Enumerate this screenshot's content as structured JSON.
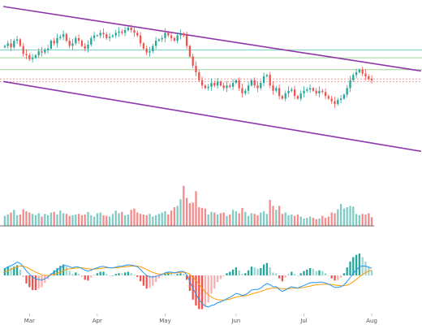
{
  "chart_data": {
    "type": "candlestick",
    "title": "",
    "colors": {
      "up": "#26a69a",
      "down": "#ef5350",
      "volume_up": "#80cbc4",
      "volume_down": "#f28b8b",
      "channel": "#8e35a8",
      "hline_teal": "#7fd1c4",
      "hline_green": "#9fd39a",
      "hline_red": "#ef9a9a",
      "macd_line": "#2196f3",
      "signal_line": "#ff9800",
      "hist_up": "#26a69a",
      "hist_down": "#ef5350"
    },
    "x_tick_labels": [
      "Mar",
      "Apr",
      "May",
      "Jun",
      "Jul",
      "Aug"
    ],
    "x_tick_index": [
      8,
      30,
      52,
      75,
      97,
      119
    ],
    "price_scale": {
      "min": 0,
      "max": 100
    },
    "volume_scale": {
      "min": 0,
      "max": 100
    },
    "macd_scale": {
      "min": -10,
      "max": 10
    },
    "horizontal_lines": [
      {
        "value": 67,
        "color": "hline_teal"
      },
      {
        "value": 61,
        "color": "hline_green"
      },
      {
        "value": 52,
        "color": "hline_green"
      },
      {
        "value": 45,
        "color": "hline_red"
      },
      {
        "value": 43,
        "color": "hline_red"
      }
    ],
    "channel_lines": [
      {
        "start": [
          0,
          100
        ],
        "end": [
          135,
          51
        ]
      },
      {
        "start": [
          0,
          43
        ],
        "end": [
          135,
          -10
        ]
      }
    ],
    "close": [
      70,
      72,
      69,
      74,
      75,
      70,
      64,
      63,
      60,
      61,
      63,
      66,
      65,
      67,
      68,
      74,
      72,
      76,
      77,
      79,
      74,
      70,
      72,
      76,
      74,
      70,
      68,
      71,
      76,
      78,
      78,
      80,
      79,
      76,
      77,
      78,
      80,
      81,
      80,
      82,
      84,
      82,
      80,
      78,
      72,
      68,
      65,
      66,
      70,
      74,
      75,
      76,
      80,
      78,
      76,
      74,
      78,
      79,
      78,
      70,
      62,
      55,
      50,
      44,
      40,
      38,
      39,
      42,
      40,
      43,
      40,
      38,
      40,
      39,
      42,
      44,
      38,
      34,
      36,
      40,
      44,
      40,
      38,
      42,
      47,
      48,
      40,
      36,
      38,
      32,
      30,
      34,
      36,
      37,
      32,
      30,
      34,
      36,
      37,
      38,
      36,
      34,
      36,
      35,
      32,
      30,
      28,
      26,
      29,
      30,
      33,
      38,
      44,
      48,
      50,
      52,
      49,
      47,
      45,
      44
    ],
    "volume": [
      15,
      17,
      20,
      24,
      16,
      17,
      25,
      22,
      20,
      18,
      16,
      19,
      14,
      18,
      16,
      20,
      21,
      17,
      23,
      19,
      18,
      15,
      16,
      17,
      18,
      16,
      17,
      21,
      16,
      14,
      19,
      20,
      16,
      15,
      14,
      18,
      23,
      19,
      21,
      16,
      17,
      24,
      26,
      20,
      18,
      17,
      16,
      18,
      14,
      16,
      18,
      20,
      22,
      17,
      23,
      28,
      30,
      40,
      60,
      42,
      34,
      35,
      52,
      28,
      27,
      26,
      17,
      21,
      20,
      17,
      19,
      20,
      15,
      17,
      24,
      22,
      19,
      27,
      21,
      15,
      19,
      18,
      16,
      20,
      22,
      18,
      39,
      30,
      24,
      30,
      18,
      20,
      16,
      17,
      15,
      17,
      14,
      11,
      12,
      14,
      12,
      10,
      11,
      15,
      12,
      14,
      20,
      19,
      25,
      33,
      26,
      28,
      30,
      29,
      18,
      16,
      18,
      17,
      19,
      13
    ],
    "macd": [
      2.0,
      2.6,
      2.9,
      3.4,
      4.0,
      3.6,
      2.6,
      1.4,
      0.4,
      -0.5,
      -1.0,
      -1.2,
      -1.4,
      -1.0,
      -0.5,
      0.4,
      1.0,
      1.6,
      2.3,
      2.9,
      3.0,
      2.6,
      2.3,
      2.6,
      2.5,
      2.1,
      1.6,
      1.3,
      1.6,
      2.0,
      2.3,
      2.6,
      2.7,
      2.5,
      2.3,
      2.3,
      2.5,
      2.7,
      2.8,
      3.0,
      3.2,
      3.1,
      2.9,
      2.6,
      1.8,
      0.8,
      0.0,
      -0.4,
      -0.5,
      -0.3,
      0.0,
      0.3,
      0.8,
      1.0,
      1.0,
      0.8,
      1.0,
      1.2,
      1.2,
      0.2,
      -1.8,
      -3.8,
      -5.6,
      -7.2,
      -8.4,
      -9.2,
      -9.5,
      -9.0,
      -8.8,
      -8.2,
      -7.9,
      -7.5,
      -7.0,
      -6.6,
      -6.0,
      -5.4,
      -5.6,
      -6.0,
      -5.8,
      -5.2,
      -4.4,
      -4.2,
      -4.2,
      -3.8,
      -3.0,
      -2.4,
      -2.8,
      -3.4,
      -3.4,
      -4.2,
      -4.8,
      -4.4,
      -3.8,
      -3.4,
      -3.6,
      -3.8,
      -3.4,
      -3.0,
      -2.6,
      -2.2,
      -2.1,
      -2.2,
      -2.0,
      -2.0,
      -2.3,
      -2.6,
      -3.1,
      -3.6,
      -3.6,
      -3.4,
      -2.8,
      -1.8,
      -0.6,
      0.6,
      1.6,
      2.6,
      2.8,
      2.8,
      2.5,
      2.2
    ],
    "signal": [
      1.0,
      1.4,
      1.8,
      2.2,
      2.6,
      2.8,
      2.8,
      2.5,
      2.0,
      1.5,
      1.0,
      0.6,
      0.2,
      0.0,
      0.0,
      0.1,
      0.3,
      0.6,
      1.0,
      1.4,
      1.8,
      2.0,
      2.1,
      2.2,
      2.3,
      2.3,
      2.2,
      2.0,
      1.9,
      1.9,
      2.0,
      2.1,
      2.2,
      2.3,
      2.3,
      2.3,
      2.3,
      2.4,
      2.5,
      2.6,
      2.7,
      2.8,
      2.8,
      2.8,
      2.6,
      2.2,
      1.8,
      1.3,
      0.9,
      0.6,
      0.4,
      0.4,
      0.5,
      0.6,
      0.7,
      0.7,
      0.8,
      0.9,
      1.0,
      0.8,
      0.3,
      -0.5,
      -1.5,
      -2.6,
      -3.8,
      -4.9,
      -5.8,
      -6.5,
      -7.0,
      -7.3,
      -7.4,
      -7.4,
      -7.3,
      -7.1,
      -6.8,
      -6.5,
      -6.3,
      -6.2,
      -6.1,
      -5.9,
      -5.6,
      -5.3,
      -5.1,
      -4.8,
      -4.5,
      -4.1,
      -3.9,
      -3.8,
      -3.7,
      -3.8,
      -4.0,
      -4.1,
      -4.0,
      -3.9,
      -3.8,
      -3.8,
      -3.7,
      -3.6,
      -3.4,
      -3.2,
      -3.0,
      -2.8,
      -2.7,
      -2.6,
      -2.6,
      -2.6,
      -2.7,
      -2.9,
      -3.0,
      -3.1,
      -3.1,
      -2.9,
      -2.5,
      -1.9,
      -1.2,
      -0.4,
      0.3,
      0.9,
      1.3,
      1.5
    ]
  }
}
